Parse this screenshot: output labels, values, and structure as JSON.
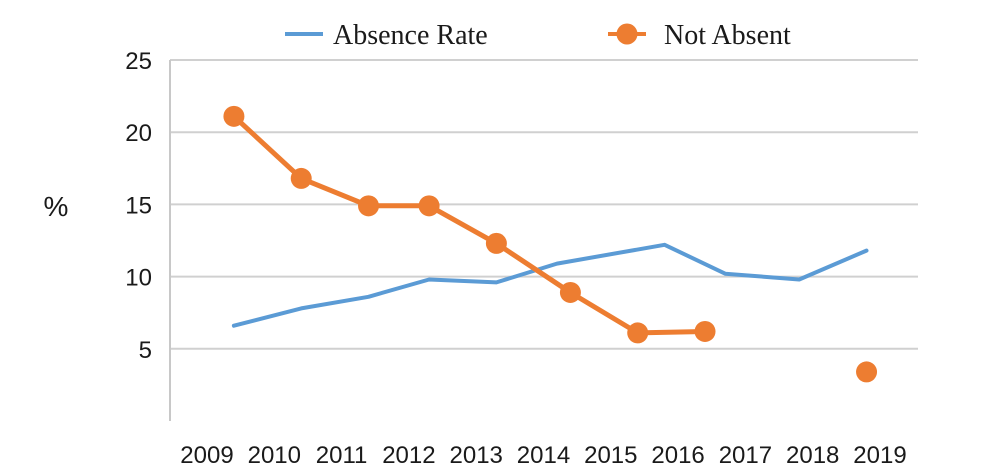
{
  "chart_data": {
    "type": "line",
    "title": "",
    "xlabel": "",
    "ylabel": "%",
    "ylim": [
      0,
      25
    ],
    "yticks": [
      5,
      10,
      15,
      20,
      25
    ],
    "grid": true,
    "legend_position": "top",
    "x_ticks": [
      "2009",
      "2010",
      "2011",
      "2012",
      "2013",
      "2014",
      "2015",
      "2016",
      "2017",
      "2018",
      "2019"
    ],
    "series": [
      {
        "name": "Absence Rate",
        "color": "#5b9bd5",
        "marker": false,
        "points": [
          {
            "x": 2009.4,
            "y": 6.6
          },
          {
            "x": 2010.4,
            "y": 7.8
          },
          {
            "x": 2011.4,
            "y": 8.6
          },
          {
            "x": 2012.3,
            "y": 9.8
          },
          {
            "x": 2013.3,
            "y": 9.6
          },
          {
            "x": 2014.2,
            "y": 10.9
          },
          {
            "x": 2015.8,
            "y": 12.2
          },
          {
            "x": 2016.7,
            "y": 10.2
          },
          {
            "x": 2017.8,
            "y": 9.8
          },
          {
            "x": 2018.8,
            "y": 11.8
          }
        ]
      },
      {
        "name": "Not Absent",
        "color": "#ed7d31",
        "marker": true,
        "segments": [
          [
            {
              "x": 2009.4,
              "y": 21.1
            },
            {
              "x": 2010.4,
              "y": 16.8
            },
            {
              "x": 2011.4,
              "y": 14.9
            },
            {
              "x": 2012.3,
              "y": 14.9
            },
            {
              "x": 2013.3,
              "y": 12.3
            },
            {
              "x": 2014.4,
              "y": 8.9
            },
            {
              "x": 2015.4,
              "y": 6.1
            },
            {
              "x": 2016.4,
              "y": 6.2
            }
          ],
          [
            {
              "x": 2018.8,
              "y": 3.4
            }
          ]
        ]
      }
    ]
  }
}
